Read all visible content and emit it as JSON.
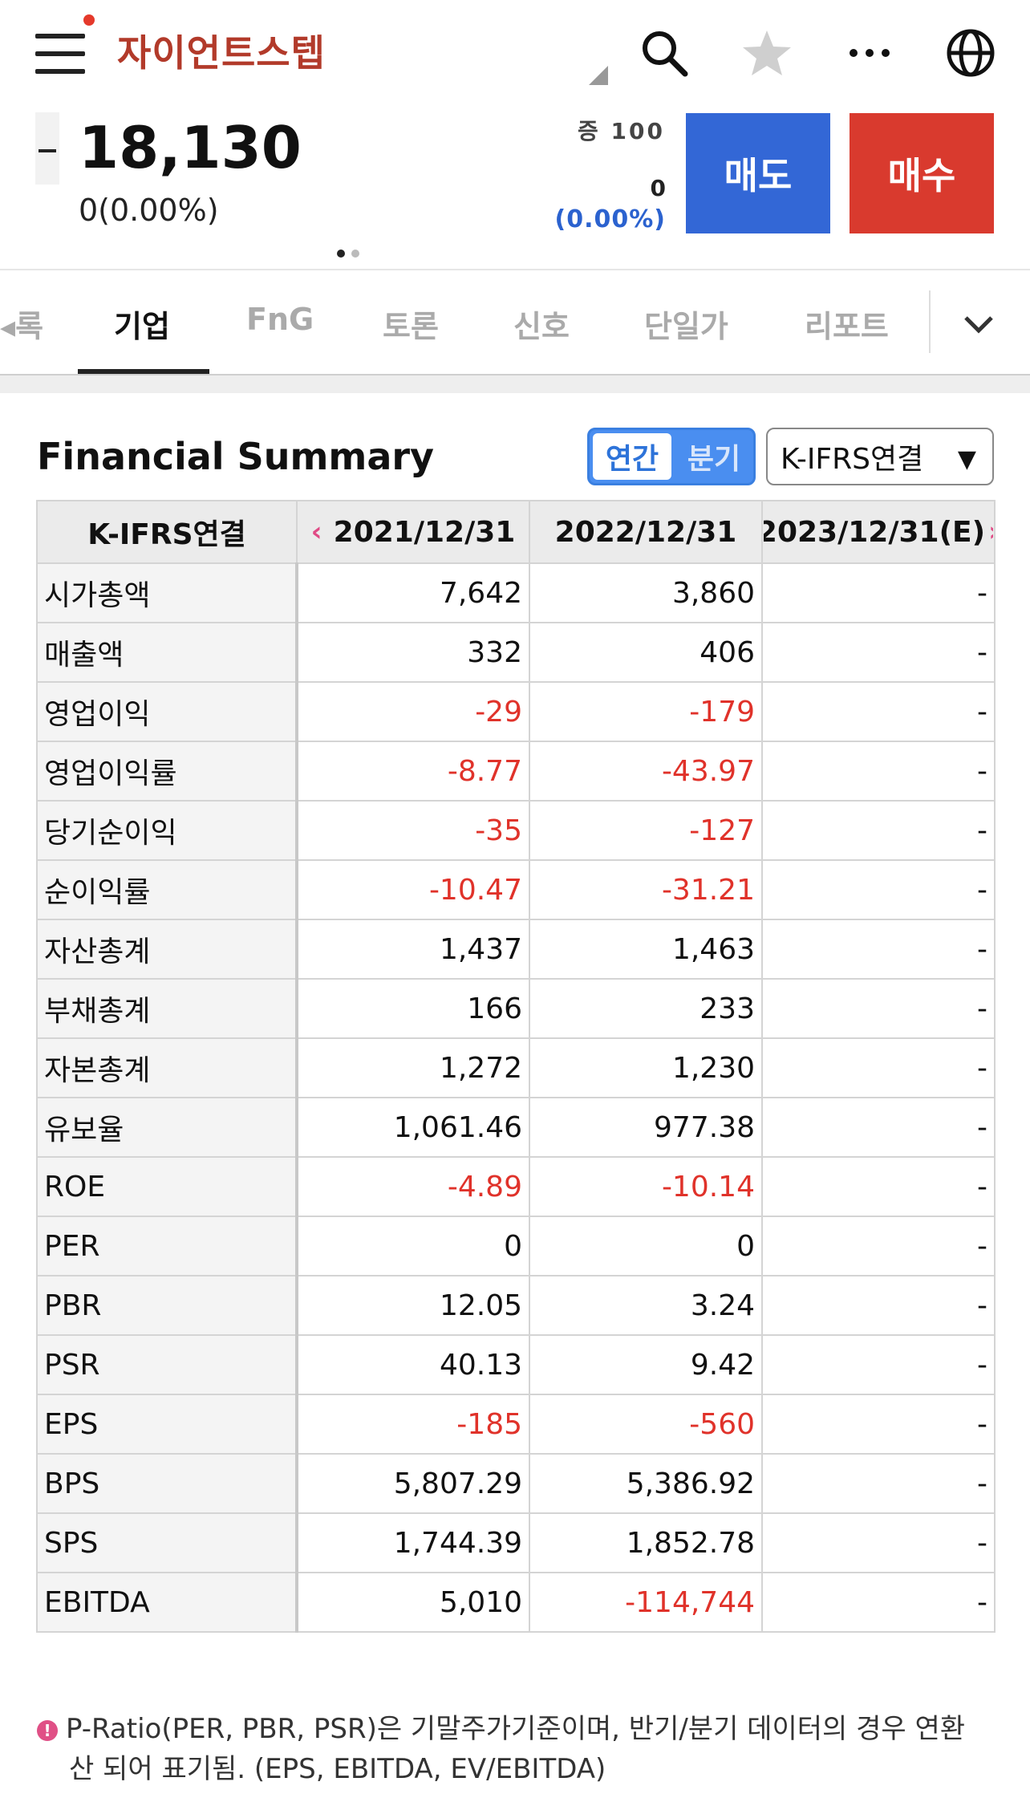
{
  "header": {
    "stock_name": "자이언트스텝",
    "icons": [
      "menu-icon",
      "search-icon",
      "star-icon",
      "more-icon",
      "globe-icon"
    ]
  },
  "quote": {
    "price": "18,130",
    "change": "0(0.00%)",
    "volume_label": "증 100",
    "volume_change": "0",
    "volume_change_pct": "(0.00%)",
    "sell_label": "매도",
    "buy_label": "매수"
  },
  "tabs": {
    "items": [
      "◂록",
      "기업",
      "FnG",
      "토론",
      "신호",
      "단일가",
      "리포트"
    ],
    "active": "기업"
  },
  "summary": {
    "title": "Financial Summary",
    "period_toggle": [
      "연간",
      "분기"
    ],
    "period_selected": "연간",
    "standard_select": "K-IFRS연결",
    "header": [
      "K-IFRS연결",
      "2021/12/31",
      "2022/12/31",
      "2023/12/31(E)"
    ],
    "rows": [
      {
        "label": "시가총액",
        "v1": "7,642",
        "v2": "3,860",
        "v3": "-"
      },
      {
        "label": "매출액",
        "v1": "332",
        "v2": "406",
        "v3": "-"
      },
      {
        "label": "영업이익",
        "v1": "-29",
        "v2": "-179",
        "v3": "-"
      },
      {
        "label": "영업이익률",
        "v1": "-8.77",
        "v2": "-43.97",
        "v3": "-"
      },
      {
        "label": "당기순이익",
        "v1": "-35",
        "v2": "-127",
        "v3": "-"
      },
      {
        "label": "순이익률",
        "v1": "-10.47",
        "v2": "-31.21",
        "v3": "-"
      },
      {
        "label": "자산총계",
        "v1": "1,437",
        "v2": "1,463",
        "v3": "-"
      },
      {
        "label": "부채총계",
        "v1": "166",
        "v2": "233",
        "v3": "-"
      },
      {
        "label": "자본총계",
        "v1": "1,272",
        "v2": "1,230",
        "v3": "-"
      },
      {
        "label": "유보율",
        "v1": "1,061.46",
        "v2": "977.38",
        "v3": "-"
      },
      {
        "label": "ROE",
        "v1": "-4.89",
        "v2": "-10.14",
        "v3": "-"
      },
      {
        "label": "PER",
        "v1": "0",
        "v2": "0",
        "v3": "-"
      },
      {
        "label": "PBR",
        "v1": "12.05",
        "v2": "3.24",
        "v3": "-"
      },
      {
        "label": "PSR",
        "v1": "40.13",
        "v2": "9.42",
        "v3": "-"
      },
      {
        "label": "EPS",
        "v1": "-185",
        "v2": "-560",
        "v3": "-"
      },
      {
        "label": "BPS",
        "v1": "5,807.29",
        "v2": "5,386.92",
        "v3": "-"
      },
      {
        "label": "SPS",
        "v1": "1,744.39",
        "v2": "1,852.78",
        "v3": "-"
      },
      {
        "label": "EBITDA",
        "v1": "5,010",
        "v2": "-114,744",
        "v3": "-"
      }
    ],
    "note_line1": "P-Ratio(PER, PBR, PSR)은 기말주가기준이며, 반기/분기 데이터의 경우 연환",
    "note_line2": "산 되어 표기됨. (EPS, EBITDA, EV/EBITDA)"
  },
  "colors": {
    "stock_name": "#b23a2a",
    "sell": "#3367d6",
    "buy": "#d93a2e",
    "negative": "#e0322a",
    "accent_blue": "#2b62cf"
  }
}
